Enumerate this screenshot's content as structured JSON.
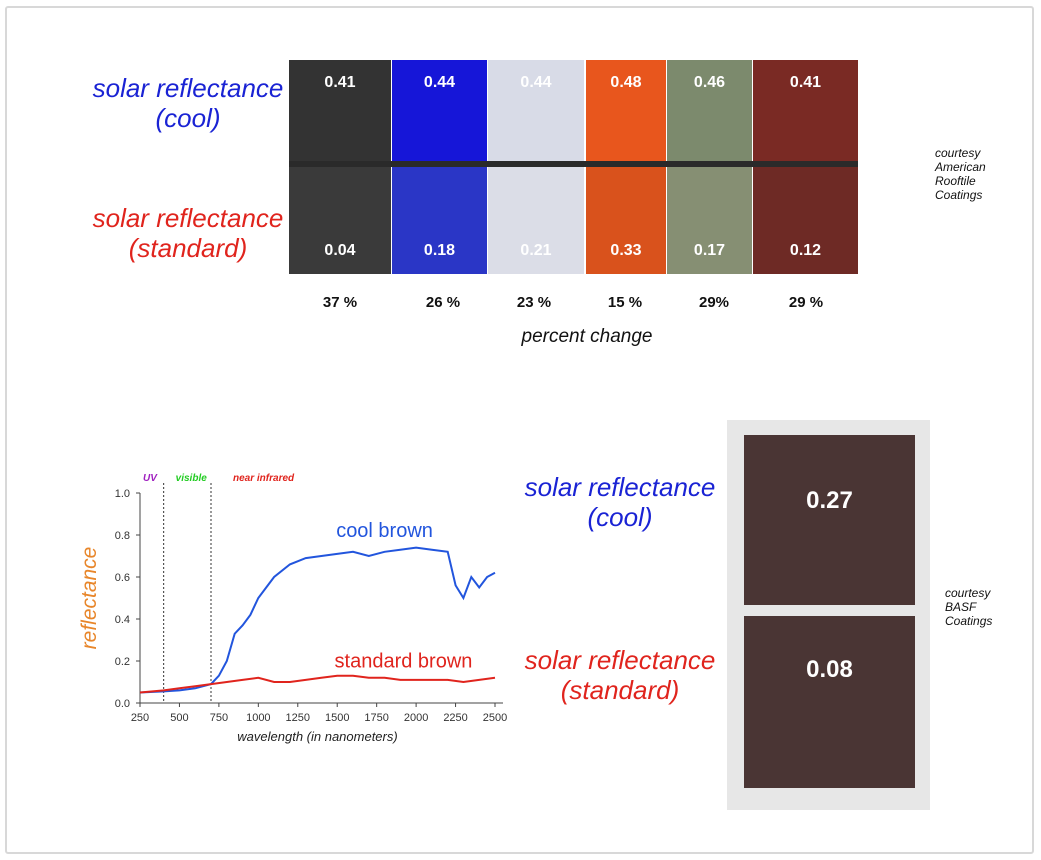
{
  "top": {
    "label_cool_line1": "solar reflectance",
    "label_cool_line2": "(cool)",
    "label_std_line1": "solar reflectance",
    "label_std_line2": "(standard)",
    "courtesy": [
      "courtesy",
      "American",
      "Rooftile",
      "Coatings"
    ],
    "tiles": [
      {
        "cool": "0.41",
        "standard": "0.04",
        "pct": "37 %",
        "color_top": "#333333",
        "color_bottom": "#3a3a3a"
      },
      {
        "cool": "0.44",
        "standard": "0.18",
        "pct": "26 %",
        "color_top": "#1616d8",
        "color_bottom": "#2a36c6"
      },
      {
        "cool": "0.44",
        "standard": "0.21",
        "pct": "23 %",
        "color_top": "#d8dbe7",
        "color_bottom": "#dbdde7"
      },
      {
        "cool": "0.48",
        "standard": "0.33",
        "pct": "15 %",
        "color_top": "#e8561d",
        "color_bottom": "#d9521c"
      },
      {
        "cool": "0.46",
        "standard": "0.17",
        "pct": "29%",
        "color_top": "#7c8a6d",
        "color_bottom": "#868f73"
      },
      {
        "cool": "0.41",
        "standard": "0.12",
        "pct": "29 %",
        "color_top": "#7a2a24",
        "color_bottom": "#6e2a25"
      }
    ],
    "percent_change_label": "percent change",
    "colors": {
      "cool": "#1a23d4",
      "standard": "#e0241d"
    }
  },
  "chart": {
    "chart_data": {
      "type": "line",
      "xlabel": "wavelength (in nanometers)",
      "ylabel": "reflectance",
      "xlim": [
        250,
        2500
      ],
      "ylim": [
        0,
        1.0
      ],
      "x_ticks": [
        "250",
        "500",
        "750",
        "1000",
        "1250",
        "1500",
        "1750",
        "2000",
        "2250",
        "2500"
      ],
      "y_ticks": [
        "0.0",
        "0.2",
        "0.4",
        "0.6",
        "0.8",
        "1.0"
      ],
      "regions": [
        {
          "name": "UV",
          "color": "#a020c0"
        },
        {
          "name": "visible",
          "color": "#22cc22"
        },
        {
          "name": "near infrared",
          "color": "#e0241d"
        }
      ],
      "region_boundaries": [
        400,
        700
      ],
      "series": [
        {
          "name": "cool brown",
          "color": "#2255dd",
          "x": [
            250,
            400,
            500,
            600,
            700,
            750,
            800,
            850,
            900,
            950,
            1000,
            1100,
            1200,
            1300,
            1400,
            1500,
            1600,
            1700,
            1800,
            1900,
            2000,
            2100,
            2200,
            2250,
            2300,
            2350,
            2400,
            2450,
            2500
          ],
          "y": [
            0.05,
            0.055,
            0.06,
            0.07,
            0.09,
            0.13,
            0.2,
            0.33,
            0.37,
            0.42,
            0.5,
            0.6,
            0.66,
            0.69,
            0.7,
            0.71,
            0.72,
            0.7,
            0.72,
            0.73,
            0.74,
            0.73,
            0.72,
            0.56,
            0.5,
            0.6,
            0.55,
            0.6,
            0.62
          ]
        },
        {
          "name": "standard brown",
          "color": "#e0241d",
          "x": [
            250,
            400,
            500,
            600,
            700,
            800,
            900,
            1000,
            1100,
            1200,
            1300,
            1400,
            1500,
            1600,
            1700,
            1800,
            1900,
            2000,
            2100,
            2200,
            2300,
            2400,
            2500
          ],
          "y": [
            0.05,
            0.06,
            0.07,
            0.08,
            0.09,
            0.1,
            0.11,
            0.12,
            0.1,
            0.1,
            0.11,
            0.12,
            0.13,
            0.13,
            0.12,
            0.12,
            0.11,
            0.11,
            0.11,
            0.11,
            0.1,
            0.11,
            0.12
          ]
        }
      ]
    }
  },
  "basf": {
    "label_cool_line1": "solar reflectance",
    "label_cool_line2": "(cool)",
    "label_std_line1": "solar reflectance",
    "label_std_line2": "(standard)",
    "cool_value": "0.27",
    "standard_value": "0.08",
    "courtesy": [
      "courtesy",
      "BASF",
      "Coatings"
    ],
    "swatch_color": "#4a3534"
  }
}
